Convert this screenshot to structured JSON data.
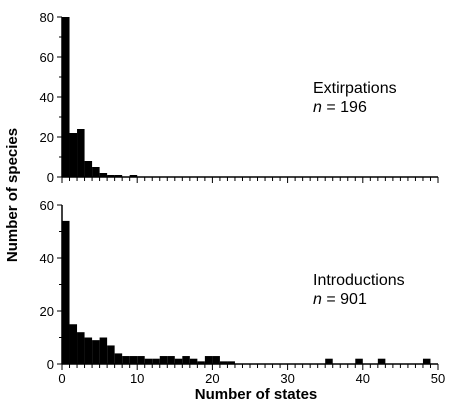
{
  "chart_data": [
    {
      "type": "bar",
      "panel": "top",
      "x": [
        0,
        1,
        2,
        3,
        4,
        5,
        6,
        7,
        8,
        9,
        10,
        11,
        12,
        13,
        14,
        15,
        16,
        17,
        18,
        19,
        20,
        21,
        22,
        23,
        24,
        25,
        26,
        27,
        28,
        29,
        30,
        31,
        32,
        33,
        34,
        35,
        36,
        37,
        38,
        39,
        40,
        41,
        42,
        43,
        44,
        45,
        46,
        47,
        48,
        49
      ],
      "values": [
        80,
        22,
        24,
        8,
        5,
        2,
        1,
        1,
        0,
        1,
        0,
        0,
        0,
        0,
        0,
        0,
        0,
        0,
        0,
        0,
        0,
        0,
        0,
        0,
        0,
        0,
        0,
        0,
        0,
        0,
        0,
        0,
        0,
        0,
        0,
        0,
        0,
        0,
        0,
        0,
        0,
        0,
        0,
        0,
        0,
        0,
        0,
        0,
        0,
        0
      ],
      "xlim": [
        0,
        50
      ],
      "ylim": [
        0,
        80
      ],
      "yticks": [
        "0",
        "20",
        "40",
        "60",
        "80"
      ],
      "annotation": {
        "label": "Extirpations",
        "n_prefix": "n",
        "n_suffix": " = 196"
      }
    },
    {
      "type": "bar",
      "panel": "bottom",
      "x": [
        0,
        1,
        2,
        3,
        4,
        5,
        6,
        7,
        8,
        9,
        10,
        11,
        12,
        13,
        14,
        15,
        16,
        17,
        18,
        19,
        20,
        21,
        22,
        23,
        24,
        25,
        26,
        27,
        28,
        29,
        30,
        31,
        32,
        33,
        34,
        35,
        36,
        37,
        38,
        39,
        40,
        41,
        42,
        43,
        44,
        45,
        46,
        47,
        48,
        49
      ],
      "values": [
        54,
        15,
        12,
        10,
        9,
        10,
        7,
        4,
        3,
        3,
        3,
        2,
        2,
        3,
        3,
        2,
        3,
        2,
        1,
        3,
        3,
        1,
        1,
        0,
        0,
        0,
        0,
        0,
        0,
        0,
        0,
        0,
        0,
        0,
        0,
        2,
        0,
        0,
        0,
        2,
        0,
        0,
        2,
        0,
        0,
        0,
        0,
        0,
        2,
        0
      ],
      "xlim": [
        0,
        50
      ],
      "ylim": [
        0,
        60
      ],
      "yticks": [
        "0",
        "20",
        "40",
        "60"
      ],
      "xticks": [
        "0",
        "10",
        "20",
        "30",
        "40",
        "50"
      ],
      "annotation": {
        "label": "Introductions",
        "n_prefix": "n",
        "n_suffix": " = 901"
      }
    }
  ],
  "labels": {
    "ylabel": "Number of species",
    "xlabel": "Number of states"
  }
}
